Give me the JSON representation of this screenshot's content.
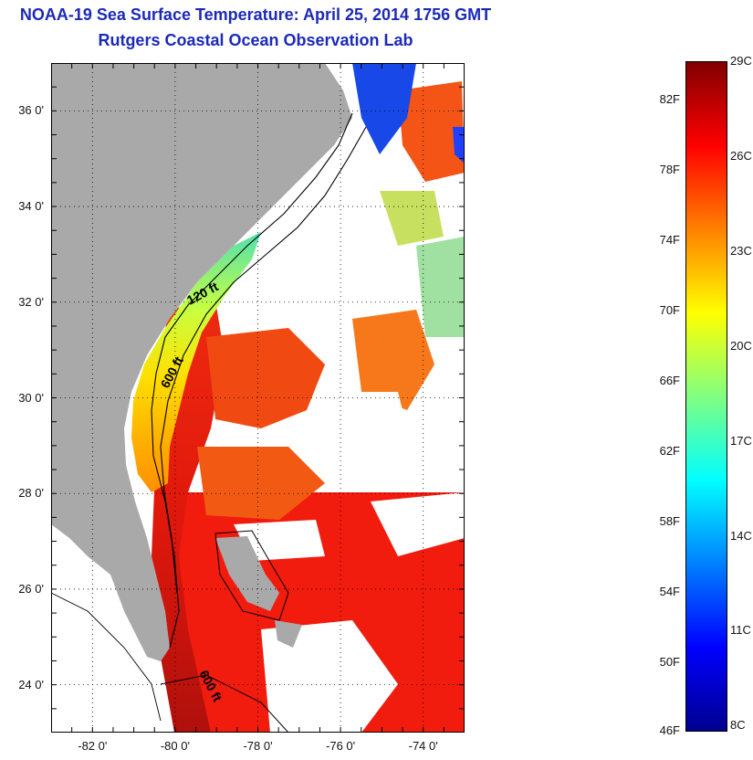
{
  "title_line1": "NOAA-19 Sea Surface Temperature:  April 25, 2014 1756 GMT",
  "title_line2": "Rutgers Coastal Ocean Observation Lab",
  "map": {
    "lon_range": [
      -83.0,
      -73.0
    ],
    "lat_range": [
      23.0,
      37.0
    ],
    "lat_ticks": [
      {
        "value": 24,
        "label": "24 0'"
      },
      {
        "value": 26,
        "label": "26 0'"
      },
      {
        "value": 28,
        "label": "28 0'"
      },
      {
        "value": 30,
        "label": "30 0'"
      },
      {
        "value": 32,
        "label": "32 0'"
      },
      {
        "value": 34,
        "label": "34 0'"
      },
      {
        "value": 36,
        "label": "36 0'"
      }
    ],
    "lon_ticks": [
      {
        "value": -82,
        "label": "-82 0'"
      },
      {
        "value": -80,
        "label": "-80 0'"
      },
      {
        "value": -78,
        "label": "-78 0'"
      },
      {
        "value": -76,
        "label": "-76 0'"
      },
      {
        "value": -74,
        "label": "-74 0'"
      }
    ],
    "contour_labels": [
      "120 ft",
      "600 ft",
      "600 ft"
    ],
    "colors": {
      "land": "#a9a9a9",
      "cloud": "#ffffff",
      "contour": "#000000"
    }
  },
  "colorbar": {
    "fahrenheit_labels": [
      "82F",
      "78F",
      "74F",
      "70F",
      "66F",
      "62F",
      "58F",
      "54F",
      "50F",
      "46F"
    ],
    "celsius_labels": [
      "29C",
      "26C",
      "23C",
      "20C",
      "17C",
      "14C",
      "11C",
      "8C"
    ],
    "range_f": [
      46,
      84.2
    ],
    "colormap": [
      "#00008f",
      "#0000ff",
      "#0080ff",
      "#00ffff",
      "#80ff80",
      "#ffff00",
      "#ff8000",
      "#ff0000",
      "#800000"
    ]
  }
}
